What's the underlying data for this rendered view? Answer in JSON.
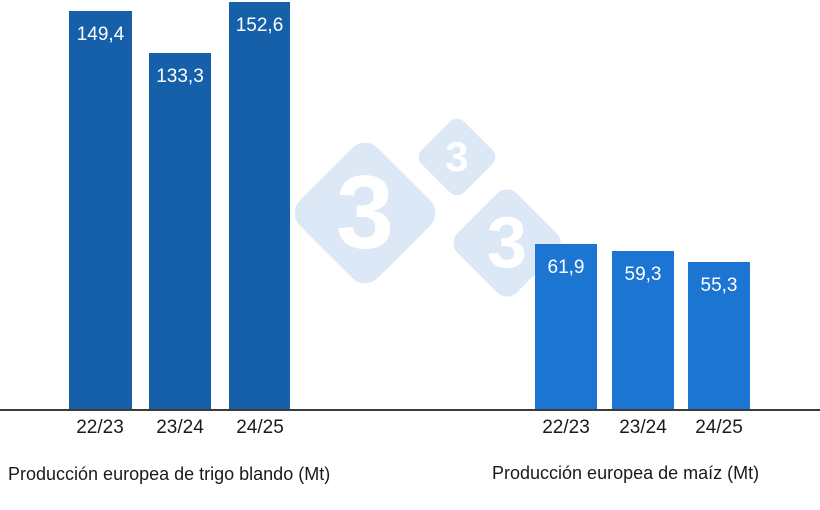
{
  "watermark": {
    "digits": [
      "3",
      "3",
      "3"
    ],
    "color": "#DCE8F6",
    "digit_color": "#FFFFFF"
  },
  "axis_color": "#3B3B3B",
  "text_color": "#1A1A1A",
  "chart_data": [
    {
      "type": "bar",
      "title": "Producción europea de trigo blando (Mt)",
      "categories": [
        "22/23",
        "23/24",
        "24/25"
      ],
      "values": [
        149.4,
        133.3,
        152.6
      ],
      "value_labels": [
        "149,4",
        "133,3",
        "152,6"
      ],
      "bar_color": "#1560A8",
      "value_label_color": "#FFFFFF",
      "ylim": [
        0,
        153.5
      ],
      "grid": false,
      "legend": "none"
    },
    {
      "type": "bar",
      "title": "Producción europea de maíz (Mt)",
      "categories": [
        "22/23",
        "23/24",
        "24/25"
      ],
      "values": [
        61.9,
        59.3,
        55.3
      ],
      "value_labels": [
        "61,9",
        "59,3",
        "55,3"
      ],
      "bar_color": "#1C75D3",
      "value_label_color": "#FFFFFF",
      "ylim": [
        0,
        153.5
      ],
      "grid": false,
      "legend": "none"
    }
  ]
}
